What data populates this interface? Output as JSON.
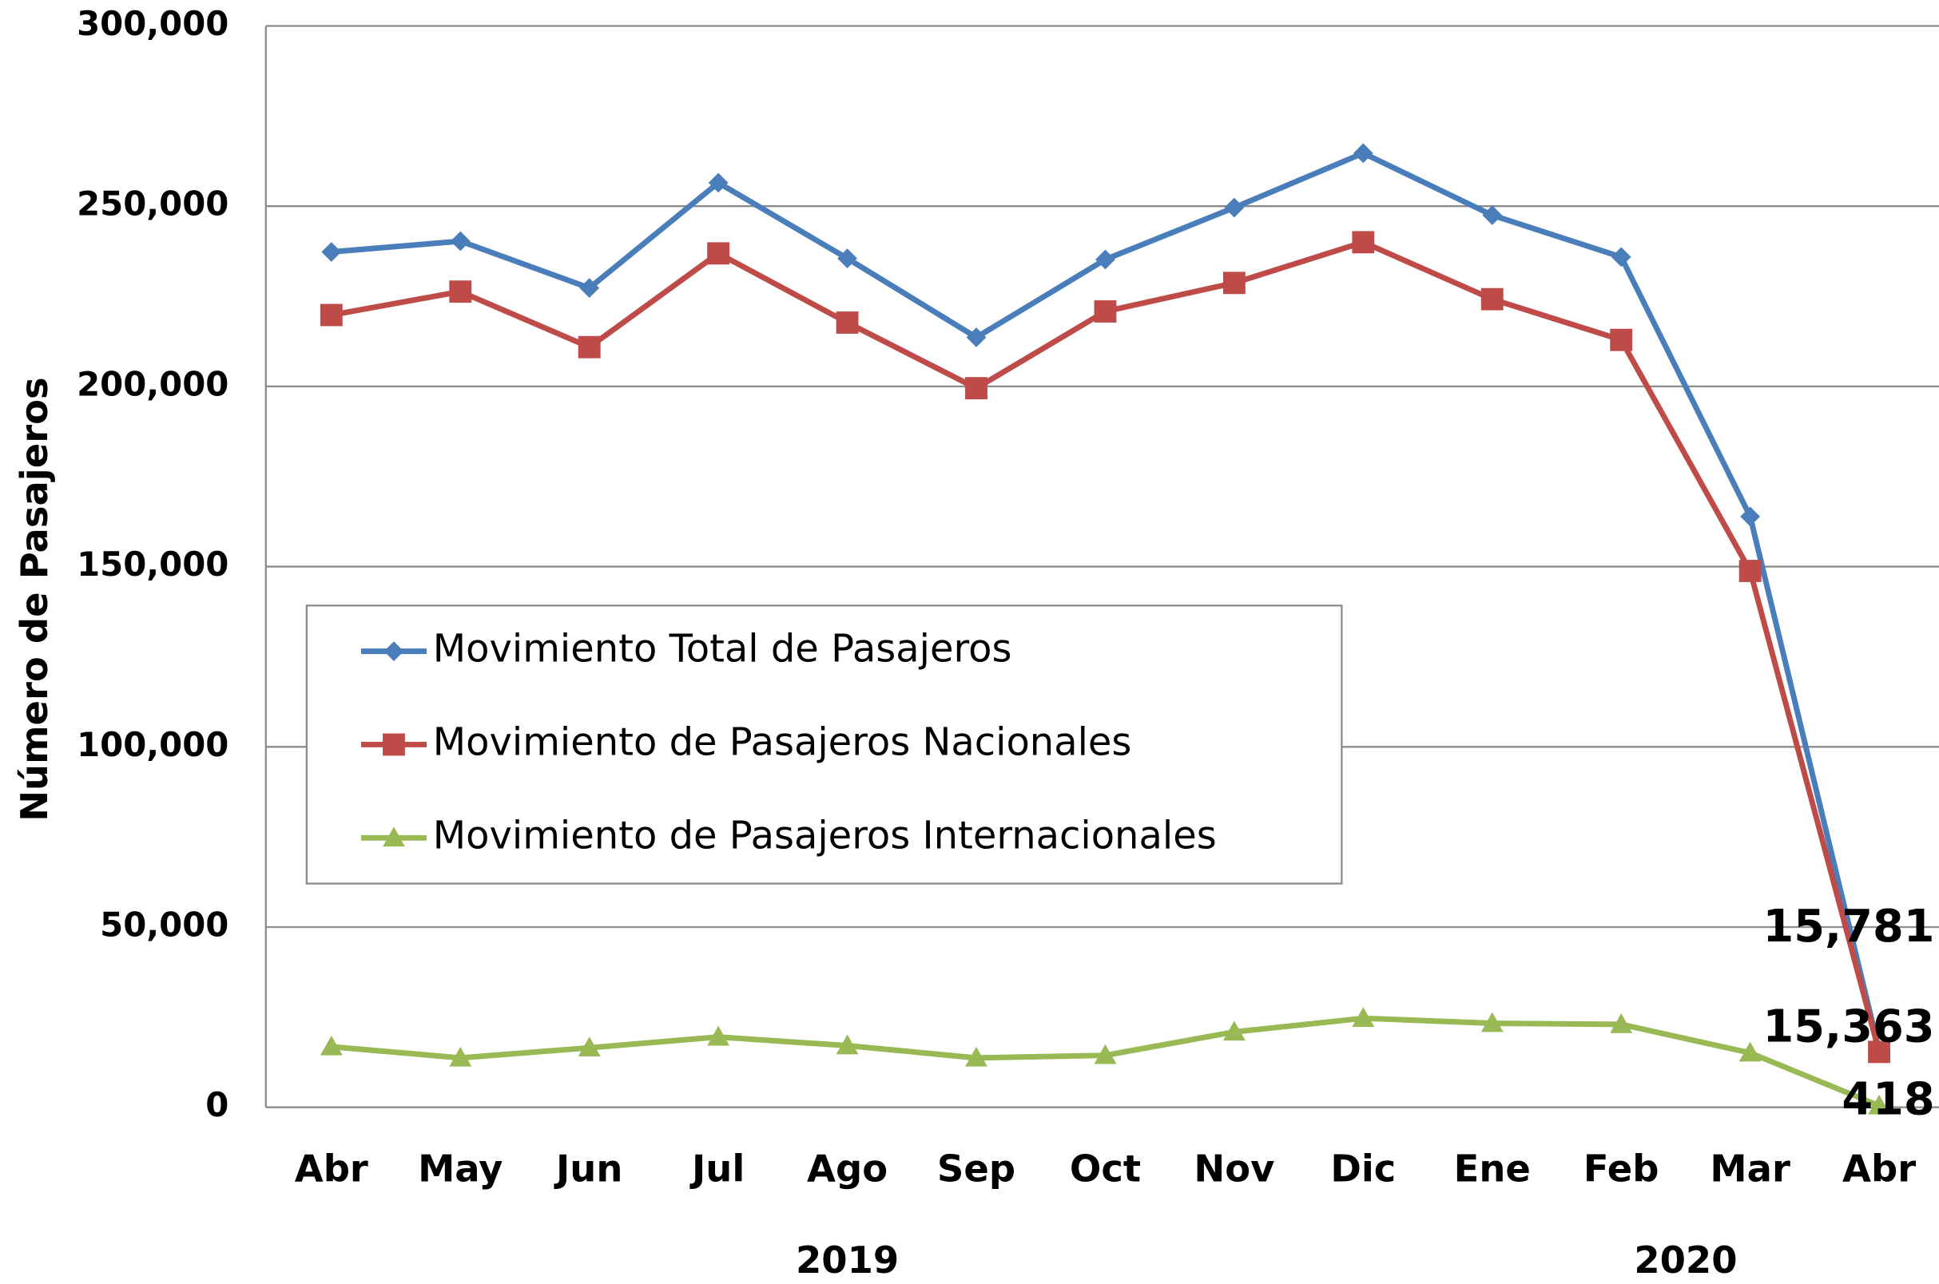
{
  "chart_data": {
    "type": "line",
    "y_label": "Número de Pasajeros",
    "categories": [
      "Abr",
      "May",
      "Jun",
      "Jul",
      "Ago",
      "Sep",
      "Oct",
      "Nov",
      "Dic",
      "Ene",
      "Feb",
      "Mar",
      "Abr"
    ],
    "x_groups": [
      "2019",
      "2020"
    ],
    "ylim": [
      0,
      300000
    ],
    "yticks": [
      0,
      {
        "value": 50000,
        "label": "50,000"
      },
      {
        "value": 100000,
        "label": "100,000"
      },
      {
        "value": 150000,
        "label": "150,000"
      },
      {
        "value": 200000,
        "label": "200,000"
      },
      {
        "value": 250000,
        "label": "250,000"
      },
      {
        "value": 300000,
        "label": "300,000"
      }
    ],
    "grid": true,
    "legend": "center-left",
    "series": [
      {
        "name": "Movimiento Total de Pasajeros",
        "color": "#4a7ebb",
        "marker": "diamond",
        "values": [
          237300,
          240300,
          227300,
          256500,
          235500,
          213600,
          235200,
          249600,
          264700,
          247500,
          235900,
          163900,
          15781
        ],
        "value_labels": [
          null,
          null,
          null,
          null,
          null,
          null,
          null,
          null,
          null,
          null,
          null,
          null,
          "15,781"
        ]
      },
      {
        "name": "Movimiento de Pasajeros Nacionales",
        "color": "#be4b48",
        "marker": "square",
        "values": [
          219800,
          226300,
          210900,
          236900,
          217700,
          199500,
          220800,
          228700,
          240000,
          224200,
          212900,
          148800,
          15363
        ],
        "value_labels": [
          null,
          null,
          null,
          null,
          null,
          null,
          null,
          null,
          null,
          null,
          null,
          null,
          "15,363"
        ]
      },
      {
        "name": "Movimiento de Pasajeros Internacionales",
        "color": "#98b954",
        "marker": "triangle",
        "values": [
          16800,
          13700,
          16500,
          19500,
          17100,
          13700,
          14400,
          20900,
          24700,
          23300,
          23000,
          15100,
          418
        ],
        "value_labels": [
          null,
          null,
          null,
          null,
          null,
          null,
          null,
          null,
          null,
          null,
          null,
          null,
          "418"
        ]
      }
    ]
  }
}
